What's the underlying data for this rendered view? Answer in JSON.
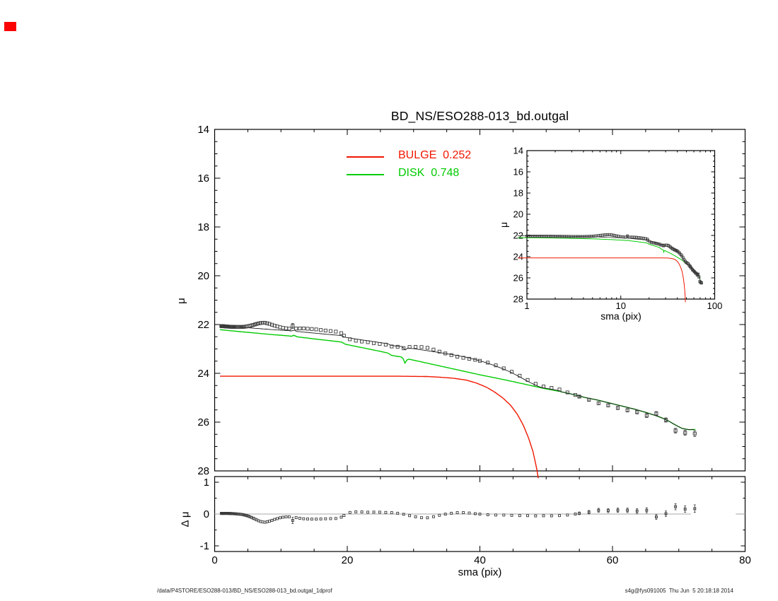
{
  "window": {
    "corner_marker_color": "#fb0300"
  },
  "header": {
    "title": "BD_NS/ESO288-013_bd.outgal"
  },
  "legend": {
    "bulge_label": "BULGE  0.252",
    "disk_label": "DISK  0.748"
  },
  "axis_titles": {
    "main_y": "μ",
    "residual_y": "Δ μ",
    "x": "sma (pix)",
    "inset_y": "μ",
    "inset_x": "sma (pix)"
  },
  "footer": {
    "left": "/data/P4STORE/ESO288-013/BD_NS/ESO288-013_bd.outgal_1dprof",
    "right": "s4g@fys091005  Thu Jun  5 20:18:18 2014"
  },
  "colors": {
    "bulge": "#f01800",
    "disk": "#00cc00",
    "data_marker": "#3a3a3a",
    "model_total": "#1a1a1a",
    "zero_line": "#aaaaaa",
    "axis": "#000000"
  },
  "chart_data": {
    "type": "line",
    "title": "BD_NS/ESO288-013_bd.outgal",
    "main_panel": {
      "xlabel": "sma (pix)",
      "ylabel": "μ",
      "xlim": [
        0,
        80
      ],
      "ylim": [
        28,
        14
      ],
      "y_reversed": true,
      "xticks": [
        0,
        20,
        40,
        60,
        80
      ],
      "xtick_minor_step": 5,
      "yticks": [
        14,
        16,
        18,
        20,
        22,
        24,
        26,
        28
      ],
      "ytick_minor_step": 0.5,
      "x_labels_shown": false
    },
    "inset_panel": {
      "xlabel": "sma (pix)",
      "ylabel": "μ",
      "xscale": "log",
      "xlim": [
        1,
        100
      ],
      "ylim": [
        28,
        14
      ],
      "xticks": [
        1,
        10,
        100
      ],
      "yticks": [
        14,
        16,
        18,
        20,
        22,
        24,
        26,
        28
      ],
      "ytick_minor_step": 0.5
    },
    "residual_panel": {
      "xlabel": "sma (pix)",
      "ylabel": "Δ μ",
      "xlim": [
        0,
        80
      ],
      "ylim": [
        -1.18,
        1.18
      ],
      "xticks": [
        0,
        20,
        40,
        60,
        80
      ],
      "xtick_minor_step": 5,
      "yticks": [
        -1,
        0,
        1
      ],
      "ytick_minor": [
        -0.5,
        0.5
      ],
      "zero_line_segments": [
        [
          0,
          71.8
        ],
        [
          78.6,
          80
        ]
      ]
    },
    "series": [
      {
        "name": "BULGE",
        "legend": "BULGE  0.252",
        "color": "#f01800",
        "fraction": 0.252,
        "points": [
          [
            0.8,
            24.12
          ],
          [
            10,
            24.12
          ],
          [
            20,
            24.12
          ],
          [
            28,
            24.12
          ],
          [
            32,
            24.13
          ],
          [
            34,
            24.16
          ],
          [
            36,
            24.2
          ],
          [
            38,
            24.28
          ],
          [
            39.5,
            24.4
          ],
          [
            41,
            24.57
          ],
          [
            42.3,
            24.78
          ],
          [
            43.5,
            25.02
          ],
          [
            44.6,
            25.3
          ],
          [
            45.6,
            25.66
          ],
          [
            46.5,
            26.1
          ],
          [
            47.3,
            26.62
          ],
          [
            48.0,
            27.2
          ],
          [
            48.6,
            27.95
          ],
          [
            49.1,
            28.7
          ]
        ]
      },
      {
        "name": "DISK",
        "legend": "DISK  0.748",
        "color": "#00cc00",
        "fraction": 0.748,
        "points": [
          [
            0.8,
            22.21
          ],
          [
            3,
            22.27
          ],
          [
            5,
            22.32
          ],
          [
            7,
            22.37
          ],
          [
            9,
            22.42
          ],
          [
            11,
            22.46
          ],
          [
            11.7,
            22.485
          ],
          [
            12.0,
            22.42
          ],
          [
            12.3,
            22.5
          ],
          [
            14,
            22.555
          ],
          [
            16,
            22.62
          ],
          [
            18,
            22.68
          ],
          [
            19.2,
            22.72
          ],
          [
            19.6,
            22.8
          ],
          [
            21,
            22.88
          ],
          [
            23,
            22.99
          ],
          [
            25,
            23.1
          ],
          [
            26.2,
            23.17
          ],
          [
            26.5,
            23.25
          ],
          [
            27.4,
            23.3
          ],
          [
            28.3,
            23.33
          ],
          [
            28.7,
            23.58
          ],
          [
            29.1,
            23.41
          ],
          [
            30,
            23.46
          ],
          [
            32,
            23.58
          ],
          [
            34,
            23.7
          ],
          [
            36,
            23.82
          ],
          [
            38,
            23.94
          ],
          [
            40,
            24.06
          ],
          [
            42,
            24.17
          ],
          [
            44,
            24.28
          ],
          [
            46,
            24.4
          ],
          [
            48,
            24.52
          ],
          [
            50,
            24.64
          ],
          [
            52,
            24.74
          ],
          [
            54,
            24.86
          ],
          [
            56,
            25.0
          ],
          [
            57.5,
            25.08
          ],
          [
            59,
            25.18
          ],
          [
            60.5,
            25.28
          ],
          [
            62,
            25.38
          ],
          [
            63.5,
            25.48
          ],
          [
            65,
            25.6
          ],
          [
            66.5,
            25.73
          ],
          [
            67.5,
            25.83
          ],
          [
            68.5,
            25.96
          ],
          [
            69.5,
            26.12
          ],
          [
            70.5,
            26.26
          ],
          [
            71.5,
            26.31
          ],
          [
            72.5,
            26.3
          ]
        ]
      },
      {
        "name": "MODEL_TOTAL",
        "derived": "flux_sum_of_bulge_and_disk",
        "color": "#1a1a1a"
      }
    ],
    "data_points": {
      "marker": "square",
      "description": "observed surface brightness = model_total + residual",
      "grid_segments": [
        [
          1.0,
          19.5,
          "ratio",
          1.045
        ],
        [
          19.5,
          40,
          "step",
          0.9
        ],
        [
          40,
          55,
          "step",
          1.2
        ],
        [
          55,
          72.5,
          "step",
          1.45
        ]
      ],
      "residual_curve": [
        [
          0.8,
          0.02
        ],
        [
          2,
          0.02
        ],
        [
          3,
          0.01
        ],
        [
          4,
          -0.01
        ],
        [
          4.5,
          -0.03
        ],
        [
          5,
          -0.06
        ],
        [
          5.5,
          -0.1
        ],
        [
          6,
          -0.15
        ],
        [
          6.5,
          -0.2
        ],
        [
          7,
          -0.24
        ],
        [
          7.5,
          -0.26
        ],
        [
          8,
          -0.24
        ],
        [
          8.5,
          -0.21
        ],
        [
          9,
          -0.17
        ],
        [
          9.5,
          -0.14
        ],
        [
          10,
          -0.11
        ],
        [
          10.5,
          -0.095
        ],
        [
          11,
          -0.085
        ],
        [
          11.5,
          -0.09
        ],
        [
          12.5,
          -0.12
        ],
        [
          13,
          -0.14
        ],
        [
          13.5,
          -0.15
        ],
        [
          14.5,
          -0.16
        ],
        [
          15.5,
          -0.16
        ],
        [
          16.5,
          -0.15
        ],
        [
          17.5,
          -0.145
        ],
        [
          18.3,
          -0.14
        ],
        [
          18.9,
          -0.125
        ],
        [
          19.3,
          -0.07
        ],
        [
          19.7,
          -0.02
        ],
        [
          20.1,
          0.04
        ],
        [
          20.7,
          0.06
        ],
        [
          21.3,
          0.07
        ],
        [
          22,
          0.065
        ],
        [
          22.6,
          0.07
        ],
        [
          23.2,
          0.055
        ],
        [
          23.8,
          0.065
        ],
        [
          24.4,
          0.05
        ],
        [
          25,
          0.06
        ],
        [
          25.6,
          0.045
        ],
        [
          26.2,
          0.055
        ],
        [
          26.8,
          0.04
        ],
        [
          27.4,
          0.03
        ],
        [
          28,
          0.015
        ],
        [
          28.9,
          -0.03
        ],
        [
          29.9,
          -0.07
        ],
        [
          30.9,
          -0.11
        ],
        [
          31.9,
          -0.125
        ],
        [
          32.9,
          -0.09
        ],
        [
          33.9,
          -0.04
        ],
        [
          34.9,
          0.0
        ],
        [
          35.9,
          0.03
        ],
        [
          36.9,
          0.05
        ],
        [
          37.9,
          0.04
        ],
        [
          38.9,
          0.02
        ],
        [
          39.9,
          0.0
        ],
        [
          40.9,
          -0.02
        ],
        [
          42.2,
          -0.03
        ],
        [
          43.5,
          -0.03
        ],
        [
          44.8,
          -0.04
        ],
        [
          46.1,
          -0.05
        ],
        [
          47.4,
          -0.05
        ],
        [
          48.7,
          -0.06
        ],
        [
          50,
          -0.05
        ],
        [
          51.3,
          -0.06
        ],
        [
          52.6,
          -0.04
        ],
        [
          53.9,
          -0.02
        ],
        [
          55.2,
          0.03
        ],
        [
          56.5,
          0.06
        ],
        [
          57.8,
          0.12
        ],
        [
          59,
          0.1
        ],
        [
          60.2,
          0.13
        ],
        [
          61.4,
          0.11
        ],
        [
          62.6,
          0.12
        ],
        [
          63.8,
          0.09
        ],
        [
          65,
          0.15
        ],
        [
          66.2,
          -0.1
        ],
        [
          67.4,
          -0.07
        ],
        [
          68.6,
          0.08
        ],
        [
          69.8,
          0.28
        ],
        [
          71,
          0.15
        ],
        [
          72.4,
          0.17
        ]
      ],
      "outliers": [
        [
          12,
          -0.2,
          0.1
        ]
      ],
      "errors": [
        [
          54,
          0.0
        ],
        [
          55.2,
          0.05
        ],
        [
          57.8,
          0.06
        ],
        [
          60,
          0.065
        ],
        [
          62,
          0.07
        ],
        [
          64,
          0.075
        ],
        [
          65,
          0.08
        ],
        [
          66.2,
          0.08
        ],
        [
          67.4,
          0.08
        ],
        [
          68.6,
          0.09
        ],
        [
          69.8,
          0.1
        ],
        [
          71,
          0.1
        ],
        [
          72.4,
          0.12
        ]
      ]
    }
  }
}
